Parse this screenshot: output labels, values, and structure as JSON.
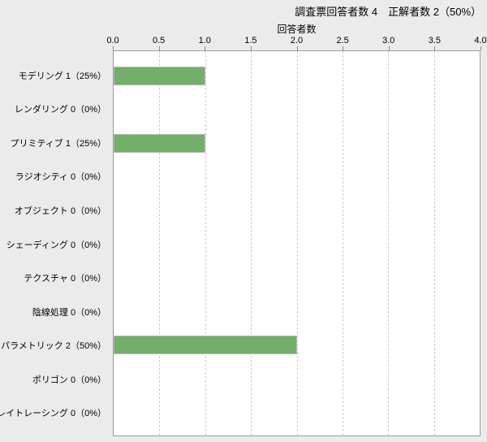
{
  "header": {
    "title": "調査票回答者数 4　正解者数 2（50%）"
  },
  "chart_data": {
    "type": "bar",
    "orientation": "horizontal",
    "title": "調査票回答者数 4　正解者数 2（50%）",
    "xlabel": "回答者数",
    "categories": [
      "モデリング",
      "レンダリング",
      "プリミティブ",
      "ラジオシティ",
      "オブジェクト",
      "シェーディング",
      "テクスチャ",
      "陰線処理",
      "パラメトリック",
      "ポリゴン",
      "レイトレーシング"
    ],
    "labels": [
      "モデリング 1（25%）",
      "レンダリング 0（0%）",
      "プリミティブ 1（25%）",
      "ラジオシティ 0（0%）",
      "オブジェクト 0（0%）",
      "シェーディング 0（0%）",
      "テクスチャ 0（0%）",
      "陰線処理 0（0%）",
      "パラメトリック 2（50%）",
      "ポリゴン 0（0%）",
      "レイトレーシング 0（0%）"
    ],
    "values": [
      1,
      0,
      1,
      0,
      0,
      0,
      0,
      0,
      2,
      0,
      0
    ],
    "percentages": [
      "25%",
      "0%",
      "25%",
      "0%",
      "0%",
      "0%",
      "0%",
      "0%",
      "50%",
      "0%",
      "0%"
    ],
    "x_ticks": [
      "0.0",
      "0.5",
      "1.0",
      "1.5",
      "2.0",
      "2.5",
      "3.0",
      "3.5",
      "4.0"
    ],
    "xlim": [
      0,
      4
    ],
    "grid": "vertical-dashed",
    "legend": "none",
    "stats": {
      "respondents": 4,
      "correct": 2,
      "correct_rate": "50%"
    }
  },
  "colors": {
    "background": "#ebebeb",
    "plot_background": "#ffffff",
    "plot_border": "#9a9a9a",
    "gridline": "#cdcdcd",
    "tick": "#8a8a8a",
    "bar_fill": "#74ae6b",
    "bar_border": "#b7b7b7",
    "text": "#000000"
  }
}
